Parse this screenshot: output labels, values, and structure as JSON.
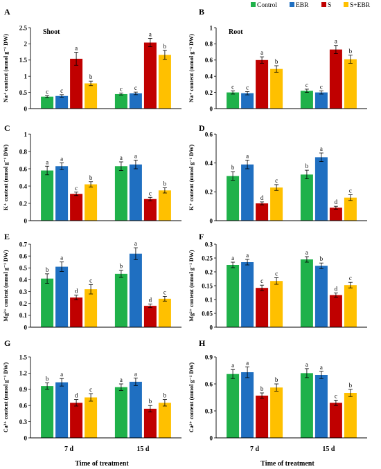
{
  "colors": {
    "Control": "#1fb14a",
    "EBR": "#1f6fc1",
    "S": "#c00000",
    "S+EBR": "#ffc000"
  },
  "legend": [
    "Control",
    "EBR",
    "S",
    "S+EBR"
  ],
  "xlabel": "Time of treatment",
  "chart_data": [
    {
      "type": "bar",
      "letter": "A",
      "inset": "Shoot",
      "ylabel": "Na⁺ content (mmol g⁻¹ DW)",
      "categories": [
        "7 d",
        "15 d"
      ],
      "ylim": [
        0,
        2.5
      ],
      "yticks": [
        "0",
        "0.5",
        "1",
        "1.5",
        "2",
        "2.5"
      ],
      "series": [
        {
          "name": "Control",
          "values": [
            0.37,
            0.45
          ],
          "errors": [
            0.03,
            0.03
          ],
          "letters": [
            "c",
            "c"
          ]
        },
        {
          "name": "EBR",
          "values": [
            0.39,
            0.47
          ],
          "errors": [
            0.04,
            0.04
          ],
          "letters": [
            "c",
            "c"
          ]
        },
        {
          "name": "S",
          "values": [
            1.54,
            2.04
          ],
          "errors": [
            0.2,
            0.13
          ],
          "letters": [
            "a",
            "a"
          ]
        },
        {
          "name": "S+EBR",
          "values": [
            0.78,
            1.66
          ],
          "errors": [
            0.07,
            0.14
          ],
          "letters": [
            "b",
            "b"
          ]
        }
      ]
    },
    {
      "type": "bar",
      "letter": "B",
      "inset": "Root",
      "ylabel": "Na⁺ content (mmol g⁻¹ DW)",
      "categories": [
        "7 d",
        "15 d"
      ],
      "ylim": [
        0,
        1
      ],
      "yticks": [
        "0",
        "0.2",
        "0.4",
        "0.6",
        "0.8",
        "1"
      ],
      "series": [
        {
          "name": "Control",
          "values": [
            0.2,
            0.22
          ],
          "errors": [
            0.02,
            0.02
          ],
          "letters": [
            "c",
            "c"
          ]
        },
        {
          "name": "EBR",
          "values": [
            0.19,
            0.2
          ],
          "errors": [
            0.02,
            0.02
          ],
          "letters": [
            "c",
            "c"
          ]
        },
        {
          "name": "S",
          "values": [
            0.6,
            0.73
          ],
          "errors": [
            0.04,
            0.05
          ],
          "letters": [
            "a",
            "a"
          ]
        },
        {
          "name": "S+EBR",
          "values": [
            0.49,
            0.61
          ],
          "errors": [
            0.04,
            0.05
          ],
          "letters": [
            "b",
            "b"
          ]
        }
      ]
    },
    {
      "type": "bar",
      "letter": "C",
      "inset": "",
      "ylabel": "K⁺ content (mmol g⁻¹ DW)",
      "categories": [
        "7 d",
        "15 d"
      ],
      "ylim": [
        0,
        1
      ],
      "yticks": [
        "0",
        "0.2",
        "0.4",
        "0.6",
        "0.8",
        "1"
      ],
      "series": [
        {
          "name": "Control",
          "values": [
            0.58,
            0.63
          ],
          "errors": [
            0.05,
            0.05
          ],
          "letters": [
            "a",
            "a"
          ]
        },
        {
          "name": "EBR",
          "values": [
            0.63,
            0.65
          ],
          "errors": [
            0.04,
            0.05
          ],
          "letters": [
            "a",
            "a"
          ]
        },
        {
          "name": "S",
          "values": [
            0.31,
            0.25
          ],
          "errors": [
            0.02,
            0.02
          ],
          "letters": [
            "c",
            "c"
          ]
        },
        {
          "name": "S+EBR",
          "values": [
            0.42,
            0.35
          ],
          "errors": [
            0.03,
            0.03
          ],
          "letters": [
            "b",
            "b"
          ]
        }
      ]
    },
    {
      "type": "bar",
      "letter": "D",
      "inset": "",
      "ylabel": "K⁺ content (mmol g⁻¹ DW)",
      "categories": [
        "7 d",
        "15 d"
      ],
      "ylim": [
        0,
        0.6
      ],
      "yticks": [
        "0",
        "0.2",
        "0.4",
        "0.6"
      ],
      "series": [
        {
          "name": "Control",
          "values": [
            0.31,
            0.32
          ],
          "errors": [
            0.03,
            0.03
          ],
          "letters": [
            "b",
            "b"
          ]
        },
        {
          "name": "EBR",
          "values": [
            0.39,
            0.44
          ],
          "errors": [
            0.03,
            0.03
          ],
          "letters": [
            "a",
            "a"
          ]
        },
        {
          "name": "S",
          "values": [
            0.12,
            0.09
          ],
          "errors": [
            0.01,
            0.01
          ],
          "letters": [
            "d",
            "d"
          ]
        },
        {
          "name": "S+EBR",
          "values": [
            0.23,
            0.16
          ],
          "errors": [
            0.02,
            0.02
          ],
          "letters": [
            "c",
            "c"
          ]
        }
      ]
    },
    {
      "type": "bar",
      "letter": "E",
      "inset": "",
      "ylabel": "Mg²⁺ content (mmol g⁻¹ DW)",
      "categories": [
        "7 d",
        "15 d"
      ],
      "ylim": [
        0,
        0.7
      ],
      "yticks": [
        "0",
        "0.1",
        "0.2",
        "0.3",
        "0.4",
        "0.5",
        "0.6",
        "0.7"
      ],
      "series": [
        {
          "name": "Control",
          "values": [
            0.41,
            0.45
          ],
          "errors": [
            0.04,
            0.03
          ],
          "letters": [
            "b",
            "b"
          ]
        },
        {
          "name": "EBR",
          "values": [
            0.51,
            0.62
          ],
          "errors": [
            0.04,
            0.05
          ],
          "letters": [
            "a",
            "a"
          ]
        },
        {
          "name": "S",
          "values": [
            0.25,
            0.18
          ],
          "errors": [
            0.02,
            0.015
          ],
          "letters": [
            "d",
            "d"
          ]
        },
        {
          "name": "S+EBR",
          "values": [
            0.32,
            0.24
          ],
          "errors": [
            0.04,
            0.02
          ],
          "letters": [
            "c",
            "c"
          ]
        }
      ]
    },
    {
      "type": "bar",
      "letter": "F",
      "inset": "",
      "ylabel": "Mg²⁺ content (mmol g⁻¹ DW)",
      "categories": [
        "7 d",
        "15 d"
      ],
      "ylim": [
        0,
        0.3
      ],
      "yticks": [
        "0",
        "0.05",
        "0.1",
        "0.15",
        "0.2",
        "0.25",
        "0.3"
      ],
      "series": [
        {
          "name": "Control",
          "values": [
            0.225,
            0.245
          ],
          "errors": [
            0.01,
            0.01
          ],
          "letters": [
            "a",
            "a"
          ]
        },
        {
          "name": "EBR",
          "values": [
            0.235,
            0.222
          ],
          "errors": [
            0.01,
            0.01
          ],
          "letters": [
            "a",
            "b"
          ]
        },
        {
          "name": "S",
          "values": [
            0.142,
            0.116
          ],
          "errors": [
            0.01,
            0.008
          ],
          "letters": [
            "c",
            "d"
          ]
        },
        {
          "name": "S+EBR",
          "values": [
            0.167,
            0.152
          ],
          "errors": [
            0.012,
            0.01
          ],
          "letters": [
            "c",
            "c"
          ]
        }
      ]
    },
    {
      "type": "bar",
      "letter": "G",
      "inset": "",
      "ylabel": "Ca²⁺ content (mmol g⁻¹ DW)",
      "categories": [
        "7 d",
        "15 d"
      ],
      "ylim": [
        0,
        1.5
      ],
      "yticks": [
        "0",
        "0.3",
        "0.6",
        "0.9",
        "1.2",
        "1.5"
      ],
      "series": [
        {
          "name": "Control",
          "values": [
            0.96,
            0.94
          ],
          "errors": [
            0.06,
            0.06
          ],
          "letters": [
            "b",
            "a"
          ]
        },
        {
          "name": "EBR",
          "values": [
            1.03,
            1.04
          ],
          "errors": [
            0.07,
            0.07
          ],
          "letters": [
            "a",
            "a"
          ]
        },
        {
          "name": "S",
          "values": [
            0.65,
            0.54
          ],
          "errors": [
            0.06,
            0.06
          ],
          "letters": [
            "d",
            "b"
          ]
        },
        {
          "name": "S+EBR",
          "values": [
            0.75,
            0.65
          ],
          "errors": [
            0.07,
            0.06
          ],
          "letters": [
            "c",
            "b"
          ]
        }
      ]
    },
    {
      "type": "bar",
      "letter": "H",
      "inset": "",
      "ylabel": "Ca²⁺ content (mmol g⁻¹ DW)",
      "categories": [
        "7 d",
        "15 d"
      ],
      "ylim": [
        0,
        0.9
      ],
      "yticks": [
        "0",
        "0.3",
        "0.6",
        "0.9"
      ],
      "series": [
        {
          "name": "Control",
          "values": [
            0.71,
            0.72
          ],
          "errors": [
            0.05,
            0.05
          ],
          "letters": [
            "a",
            "a"
          ]
        },
        {
          "name": "EBR",
          "values": [
            0.73,
            0.7
          ],
          "errors": [
            0.06,
            0.04
          ],
          "letters": [
            "a",
            "a"
          ]
        },
        {
          "name": "S",
          "values": [
            0.47,
            0.39
          ],
          "errors": [
            0.03,
            0.03
          ],
          "letters": [
            "b",
            "c"
          ]
        },
        {
          "name": "S+EBR",
          "values": [
            0.56,
            0.5
          ],
          "errors": [
            0.04,
            0.04
          ],
          "letters": [
            "b",
            "b"
          ]
        }
      ]
    }
  ]
}
